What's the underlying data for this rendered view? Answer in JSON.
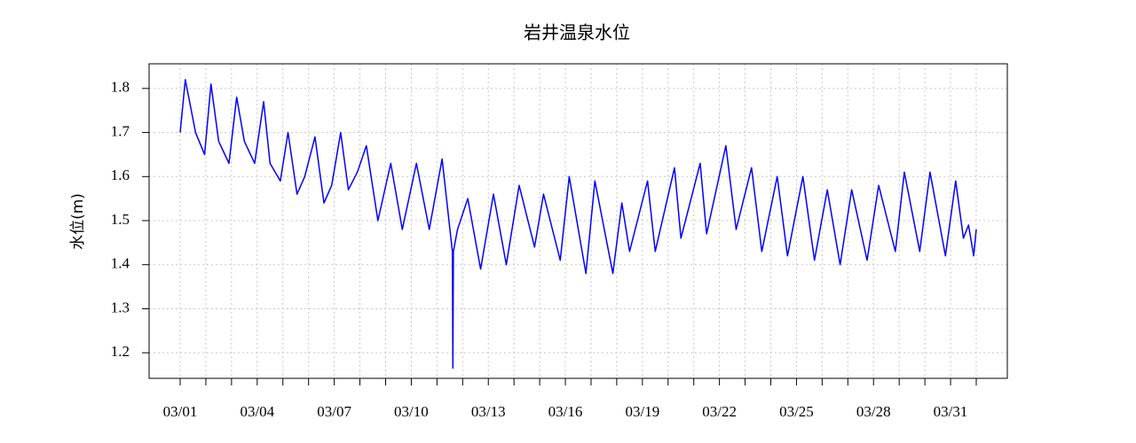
{
  "chart_data": {
    "type": "line",
    "title": "岩井温泉水位",
    "y_label": "水位(m)",
    "xlim": [
      -0.21,
      33.21
    ],
    "ylim": [
      1.142,
      1.856
    ],
    "xticks": [
      {
        "value": 1,
        "label": "03/01"
      },
      {
        "value": 4,
        "label": "03/04"
      },
      {
        "value": 7,
        "label": "03/07"
      },
      {
        "value": 10,
        "label": "03/10"
      },
      {
        "value": 13,
        "label": "03/13"
      },
      {
        "value": 16,
        "label": "03/16"
      },
      {
        "value": 19,
        "label": "03/19"
      },
      {
        "value": 22,
        "label": "03/22"
      },
      {
        "value": 25,
        "label": "03/25"
      },
      {
        "value": 28,
        "label": "03/28"
      },
      {
        "value": 31,
        "label": "03/31"
      }
    ],
    "xminorticks": [
      2,
      3,
      5,
      6,
      8,
      9,
      11,
      12,
      14,
      15,
      17,
      18,
      20,
      21,
      23,
      24,
      26,
      27,
      29,
      30,
      32
    ],
    "yticks": [
      1.2,
      1.3,
      1.4,
      1.5,
      1.6,
      1.7,
      1.8
    ],
    "grid": true,
    "series": [
      {
        "color": "#0000ff",
        "x": [
          1,
          1.2,
          1.6,
          1.95,
          2.2,
          2.5,
          2.9,
          3.2,
          3.5,
          3.9,
          4.25,
          4.5,
          4.9,
          5.2,
          5.55,
          5.85,
          6.25,
          6.6,
          6.9,
          7.25,
          7.55,
          7.9,
          8.25,
          8.7,
          9.2,
          9.65,
          10.2,
          10.7,
          11.2,
          11.6,
          11.62,
          11.64,
          11.8,
          12.2,
          12.7,
          13.2,
          13.7,
          14.2,
          14.8,
          15.15,
          15.8,
          16.15,
          16.8,
          17.15,
          17.85,
          18.2,
          18.5,
          19.2,
          19.5,
          20.25,
          20.5,
          21.25,
          21.5,
          22.25,
          22.65,
          23.25,
          23.65,
          24.25,
          24.65,
          25.25,
          25.7,
          26.2,
          26.7,
          27.15,
          27.75,
          28.2,
          28.85,
          29.2,
          29.8,
          30.2,
          30.8,
          31.2,
          31.5,
          31.7,
          31.9,
          32
        ],
        "values": [
          1.7,
          1.82,
          1.7,
          1.65,
          1.81,
          1.68,
          1.63,
          1.78,
          1.68,
          1.63,
          1.77,
          1.63,
          1.59,
          1.7,
          1.56,
          1.6,
          1.69,
          1.54,
          1.58,
          1.7,
          1.57,
          1.61,
          1.67,
          1.5,
          1.63,
          1.48,
          1.63,
          1.48,
          1.64,
          1.43,
          1.165,
          1.43,
          1.48,
          1.55,
          1.39,
          1.56,
          1.4,
          1.58,
          1.44,
          1.56,
          1.41,
          1.6,
          1.38,
          1.59,
          1.38,
          1.54,
          1.43,
          1.59,
          1.43,
          1.62,
          1.46,
          1.63,
          1.47,
          1.67,
          1.48,
          1.62,
          1.43,
          1.6,
          1.42,
          1.6,
          1.41,
          1.57,
          1.4,
          1.57,
          1.41,
          1.58,
          1.43,
          1.61,
          1.43,
          1.61,
          1.42,
          1.59,
          1.46,
          1.49,
          1.42,
          1.48
        ]
      }
    ]
  }
}
